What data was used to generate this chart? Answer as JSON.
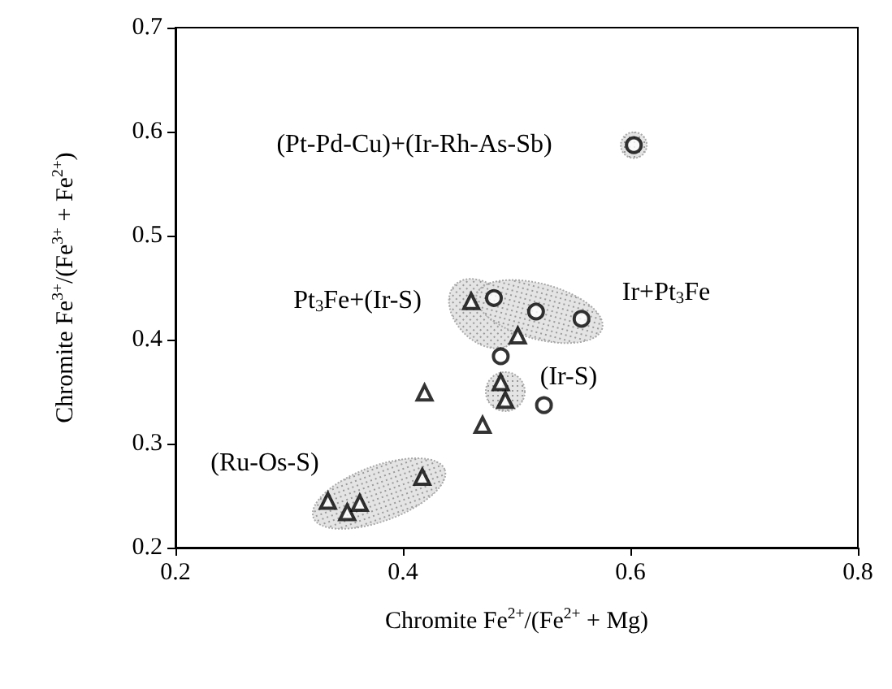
{
  "chart_data": {
    "type": "scatter",
    "xlabel": "Chromite Fe$^{2+}$/(Fe$^{2+}$ + Mg)",
    "ylabel": "Chromite Fe$^{3+}$/(Fe$^{3+}$ + Fe$^{2+}$)",
    "xlim": [
      0.2,
      0.8
    ],
    "xticks": [
      0.2,
      0.4,
      0.6,
      0.8
    ],
    "ylim": [
      0.2,
      0.7
    ],
    "yticks": [
      0.2,
      0.3,
      0.4,
      0.5,
      0.6,
      0.7
    ],
    "grid": false,
    "series": [
      {
        "marker": "triangle",
        "color": "#000000",
        "x": [
          0.46,
          0.501,
          0.486,
          0.49,
          0.419,
          0.47,
          0.417,
          0.334,
          0.351,
          0.362
        ],
        "values": [
          0.437,
          0.404,
          0.359,
          0.342,
          0.349,
          0.318,
          0.268,
          0.245,
          0.234,
          0.243
        ]
      },
      {
        "marker": "circle",
        "color": "#000000",
        "x": [
          0.48,
          0.517,
          0.557,
          0.486,
          0.524,
          0.603
        ],
        "values": [
          0.44,
          0.427,
          0.42,
          0.384,
          0.337,
          0.587
        ]
      }
    ],
    "annotations": [
      "(Pt-Pd-Cu)+(Ir-Rh-As-Sb)",
      "Pt$_{3}$Fe+(Ir-S)",
      "Ir+Pt$_{3}$Fe",
      "(Ir-S)",
      "(Ru-Os-S)"
    ]
  }
}
